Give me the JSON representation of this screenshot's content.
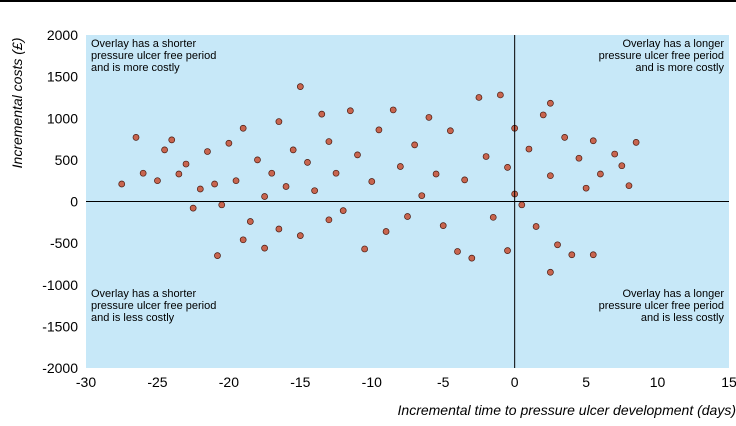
{
  "chart_data": {
    "type": "scatter",
    "title": "",
    "xlabel": "Incremental time to pressure ulcer development (days)",
    "ylabel": "Incremental costs (£)",
    "xlim": [
      -30,
      15
    ],
    "ylim": [
      -2000,
      2000
    ],
    "xticks": [
      "-30",
      "-25",
      "-20",
      "-15",
      "-10",
      "-5",
      "0",
      "5",
      "10",
      "15"
    ],
    "yticks": [
      "2000",
      "1500",
      "1000",
      "500",
      "0",
      "-500",
      "-1000",
      "-1500",
      "-2000"
    ],
    "grid": false,
    "reference_lines": {
      "x": 0,
      "y": 0
    },
    "colors": {
      "plot_background": "#c7e8f8",
      "point_fill": "#c8654f",
      "point_stroke": "#4a1a10"
    },
    "annotations": {
      "top_left": [
        "Overlay has a shorter",
        "pressure ulcer free period",
        "and is more costly"
      ],
      "top_right": [
        "Overlay has a longer",
        "pressure ulcer free period",
        "and is more costly"
      ],
      "bottom_left": [
        "Overlay has a shorter",
        "pressure ulcer free period",
        "and is less costly"
      ],
      "bottom_right": [
        "Overlay has a longer",
        "pressure ulcer free period",
        "and is less costly"
      ]
    },
    "series": [
      {
        "points": [
          [
            -27.5,
            210
          ],
          [
            -26.5,
            770
          ],
          [
            -26,
            340
          ],
          [
            -25,
            250
          ],
          [
            -24.5,
            620
          ],
          [
            -24,
            740
          ],
          [
            -23.5,
            330
          ],
          [
            -23,
            450
          ],
          [
            -22.5,
            -80
          ],
          [
            -22,
            150
          ],
          [
            -21.5,
            600
          ],
          [
            -21,
            210
          ],
          [
            -20.5,
            -40
          ],
          [
            -20.8,
            -650
          ],
          [
            -20,
            700
          ],
          [
            -19.5,
            250
          ],
          [
            -19,
            880
          ],
          [
            -19,
            -460
          ],
          [
            -18.5,
            -240
          ],
          [
            -18,
            500
          ],
          [
            -17.5,
            60
          ],
          [
            -17.5,
            -560
          ],
          [
            -17,
            340
          ],
          [
            -16.5,
            960
          ],
          [
            -16.5,
            -330
          ],
          [
            -16,
            180
          ],
          [
            -15.5,
            620
          ],
          [
            -15,
            1380
          ],
          [
            -15,
            -410
          ],
          [
            -14.5,
            470
          ],
          [
            -14,
            130
          ],
          [
            -13.5,
            1050
          ],
          [
            -13,
            -220
          ],
          [
            -13,
            720
          ],
          [
            -12.5,
            340
          ],
          [
            -12,
            -110
          ],
          [
            -11.5,
            1090
          ],
          [
            -11,
            560
          ],
          [
            -10.5,
            -570
          ],
          [
            -10,
            240
          ],
          [
            -9.5,
            860
          ],
          [
            -9,
            -360
          ],
          [
            -8.5,
            1100
          ],
          [
            -8,
            420
          ],
          [
            -7.5,
            -180
          ],
          [
            -7,
            680
          ],
          [
            -6.5,
            70
          ],
          [
            -6,
            1010
          ],
          [
            -5.5,
            330
          ],
          [
            -5,
            -290
          ],
          [
            -4.5,
            850
          ],
          [
            -4,
            -600
          ],
          [
            -3.5,
            260
          ],
          [
            -3,
            -680
          ],
          [
            -2.5,
            1250
          ],
          [
            -2,
            540
          ],
          [
            -1.5,
            -190
          ],
          [
            -1,
            1280
          ],
          [
            -0.5,
            410
          ],
          [
            -0.5,
            -590
          ],
          [
            0,
            880
          ],
          [
            0,
            90
          ],
          [
            0.5,
            -40
          ],
          [
            1,
            630
          ],
          [
            1.5,
            -300
          ],
          [
            2,
            1040
          ],
          [
            2.5,
            1180
          ],
          [
            2.5,
            310
          ],
          [
            2.5,
            -850
          ],
          [
            3,
            -520
          ],
          [
            3.5,
            770
          ],
          [
            4,
            -640
          ],
          [
            4.5,
            520
          ],
          [
            5,
            160
          ],
          [
            5.5,
            730
          ],
          [
            5.5,
            -640
          ],
          [
            6,
            330
          ],
          [
            7,
            570
          ],
          [
            7.5,
            430
          ],
          [
            8,
            190
          ],
          [
            8.5,
            710
          ]
        ]
      }
    ]
  }
}
